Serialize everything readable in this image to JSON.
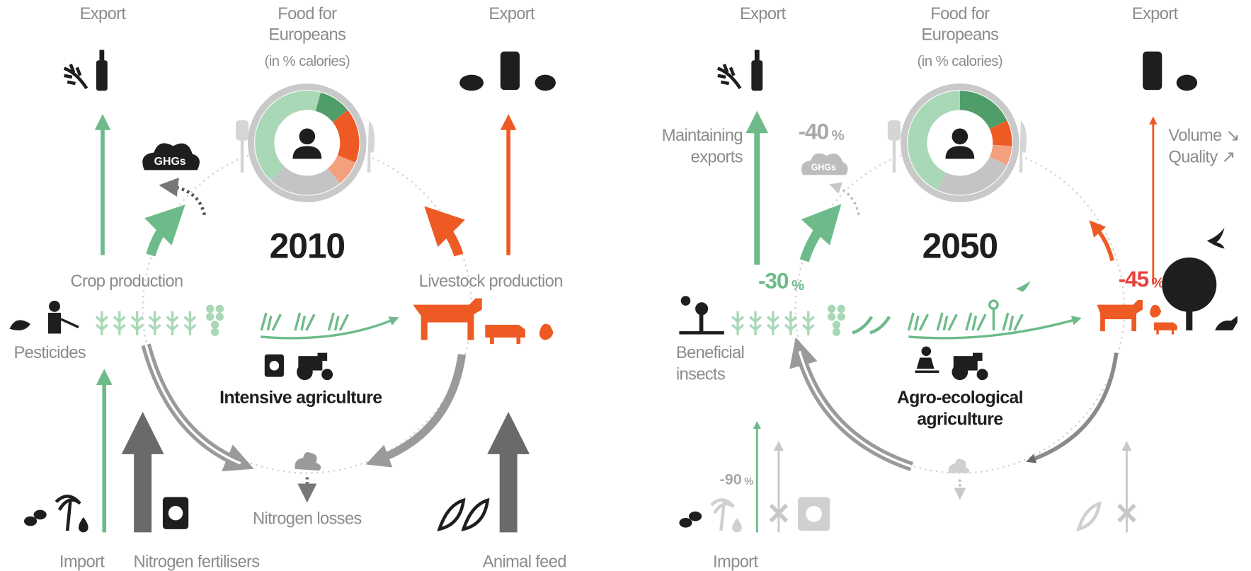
{
  "left": {
    "export_left": "Export",
    "food_title": [
      "Food for",
      "Europeans"
    ],
    "food_subtitle": "(in % calories)",
    "export_right": "Export",
    "ghgs": "GHGs",
    "year": "2010",
    "crop": "Crop production",
    "livestock": "Livestock production",
    "pesticides": "Pesticides",
    "system": [
      "Intensive agriculture"
    ],
    "nitrogen_losses": "Nitrogen losses",
    "import": "Import",
    "fertilisers": "Nitrogen fertilisers",
    "feed": "Animal feed",
    "diet": [
      {
        "color": "#4f9e6a",
        "value": 10
      },
      {
        "color": "#ee5a24",
        "value": 17
      },
      {
        "color": "#f4a07e",
        "value": 8
      },
      {
        "color": "#c4c4c4",
        "value": 23
      },
      {
        "color": "#a9d8b7",
        "value": 42
      }
    ]
  },
  "right": {
    "export_left": "Export",
    "food_title": [
      "Food for",
      "Europeans"
    ],
    "food_subtitle": "(in % calories)",
    "export_right": "Export",
    "maintaining": [
      "Maintaining",
      "exports"
    ],
    "ghg_change": {
      "value": -40,
      "unit": "%"
    },
    "ghgs": "GHGs",
    "export_notes": [
      "Volume ↘",
      "Quality ↗"
    ],
    "year": "2050",
    "crop_change": {
      "value": -30,
      "unit": "%"
    },
    "livestock_change": {
      "value": -45,
      "unit": "%"
    },
    "beneficial": [
      "Beneficial",
      "insects"
    ],
    "system": [
      "Agro-ecological",
      "agriculture"
    ],
    "import_change": {
      "value": -90,
      "unit": "%"
    },
    "import": "Import",
    "diet": [
      {
        "color": "#4f9e6a",
        "value": 18
      },
      {
        "color": "#ee5a24",
        "value": 8
      },
      {
        "color": "#f4a07e",
        "value": 6
      },
      {
        "color": "#c4c4c4",
        "value": 25
      },
      {
        "color": "#a9d8b7",
        "value": 43
      }
    ]
  }
}
